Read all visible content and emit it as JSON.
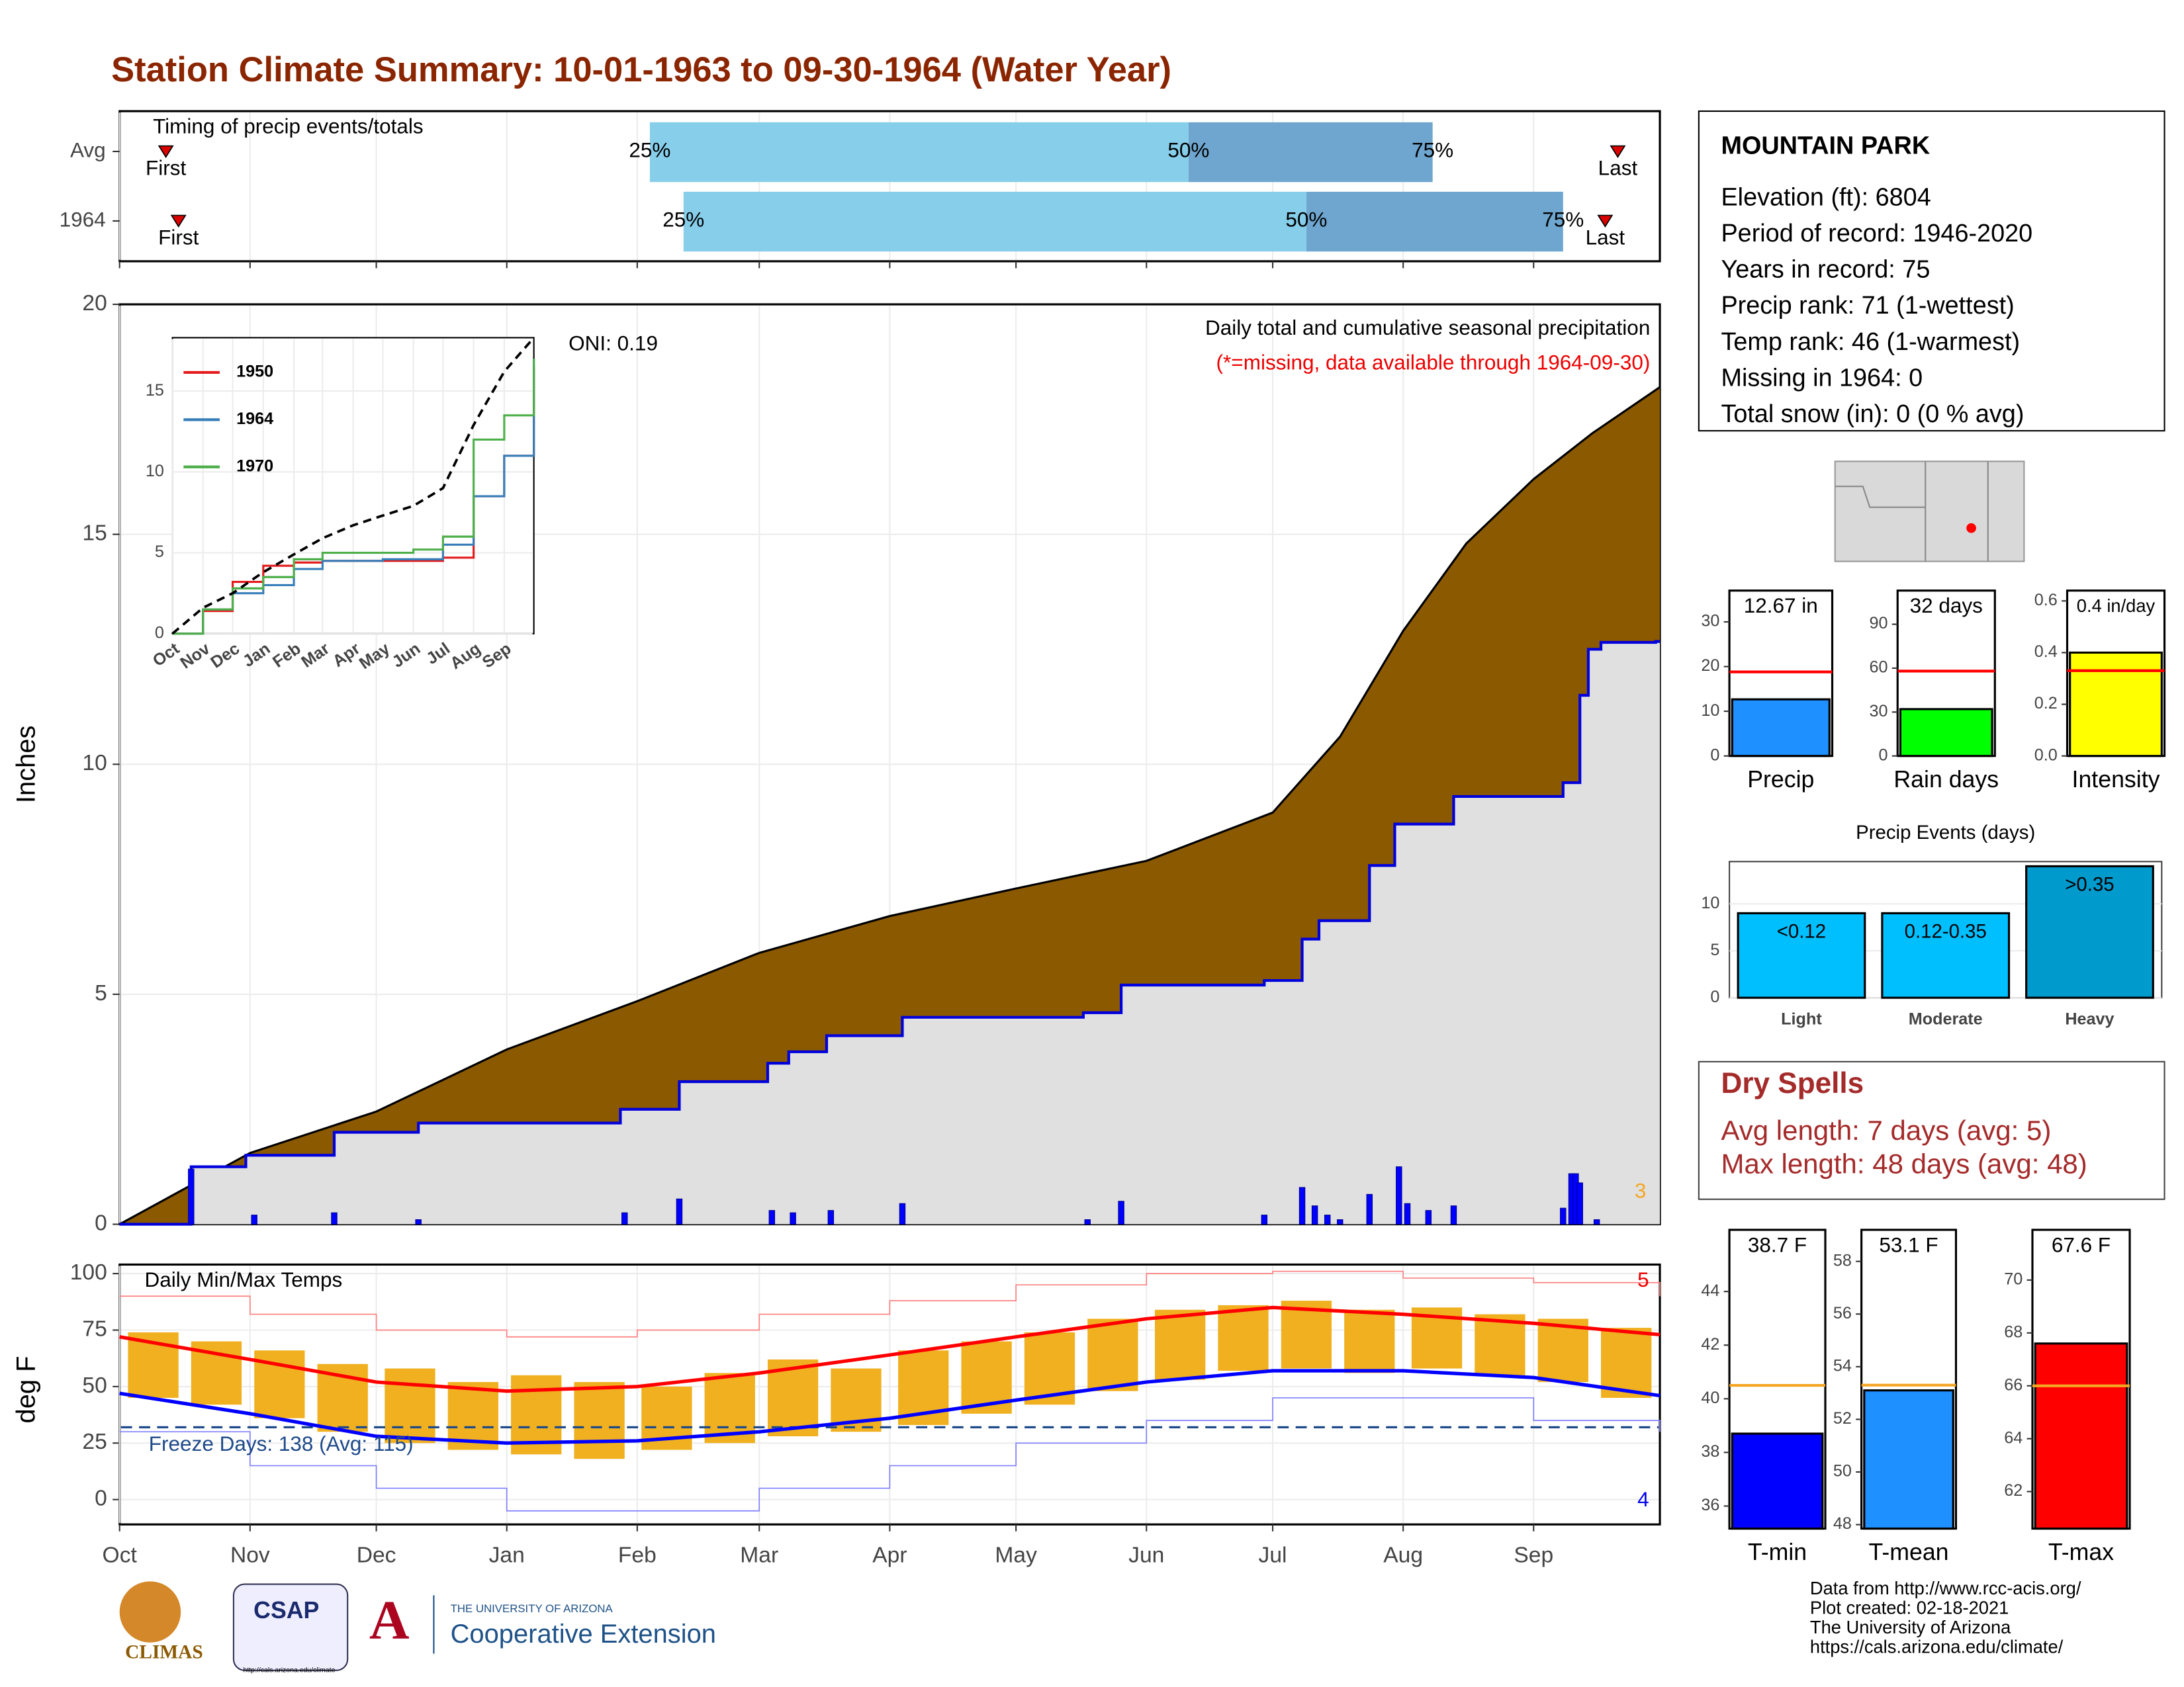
{
  "title": "Station Climate Summary: 10-01-1963 to 09-30-1964 (Water Year)",
  "station": {
    "name": "MOUNTAIN PARK",
    "lines": [
      "Elevation (ft): 6804",
      "Period of record: 1946-2020",
      "Years in record: 75",
      "Precip rank: 71 (1-wettest)",
      "Temp rank: 46 (1-warmest)",
      "Missing in 1964: 0",
      "Total snow (in): 0 (0 % avg)"
    ]
  },
  "dry_spells": {
    "title": "Dry Spells",
    "lines": [
      "Avg length: 7 days (avg: 5)",
      "Max length: 48 days (avg: 48)"
    ]
  },
  "footer": [
    "Data from http://www.rcc-acis.org/",
    "Plot created: 02-18-2021",
    "The University of Arizona",
    "https://cals.arizona.edu/climate/"
  ],
  "logos": {
    "climas": "CLIMAS",
    "csap": "CSAP",
    "csap_url": "http://cals.arizona.edu/climate",
    "ua": "THE UNIVERSITY OF ARIZONA",
    "coop": "Cooperative Extension"
  },
  "chart_data": [
    {
      "type": "timing",
      "title": "Timing of precip events/totals",
      "first_label": "First",
      "last_label": "Last",
      "quantile_labels": [
        "25%",
        "50%",
        "75%"
      ],
      "rows": [
        {
          "name": "Avg",
          "first": 11,
          "q25": 126,
          "q50": 254,
          "q75": 312,
          "last": 356
        },
        {
          "name": "1964",
          "first": 14,
          "q25": 134,
          "q50": 282,
          "q75": 343,
          "last": 353
        }
      ],
      "colors": [
        "#87ceeb",
        "#6ea6cf"
      ]
    },
    {
      "type": "cumulative",
      "title": "Daily total and cumulative seasonal precipitation",
      "subtitle": "(*=missing, data available through 1964-09-30)",
      "annotation": "ONI: 0.19",
      "count_label": "3",
      "ylabel": "Inches",
      "ylim": [
        0,
        20
      ],
      "yticks": [
        0,
        5,
        10,
        15,
        20
      ],
      "grid": true,
      "avg": {
        "color": "#8b5a00",
        "x": [
          0,
          31,
          61,
          92,
          123,
          152,
          183,
          213,
          244,
          274,
          290,
          305,
          320,
          336,
          350,
          366
        ],
        "values": [
          0,
          1.55,
          2.45,
          3.8,
          4.85,
          5.9,
          6.7,
          7.3,
          7.9,
          8.95,
          10.6,
          12.9,
          14.8,
          16.2,
          17.2,
          18.2
        ]
      },
      "current": {
        "color": "#0000dd",
        "fill": "#e0e0e0",
        "x": [
          0,
          17,
          30,
          51,
          71,
          119,
          133,
          154,
          159,
          168,
          186,
          229,
          238,
          272,
          281,
          285,
          297,
          303,
          317,
          343,
          347,
          349,
          352,
          365
        ],
        "values": [
          0,
          1.25,
          1.5,
          2.0,
          2.2,
          2.5,
          3.1,
          3.5,
          3.75,
          4.1,
          4.5,
          4.6,
          5.2,
          5.3,
          6.2,
          6.6,
          7.8,
          8.7,
          9.3,
          9.6,
          11.5,
          12.5,
          12.65,
          12.67
        ]
      },
      "daily": {
        "color": "#0000ff",
        "x": [
          17,
          32,
          51,
          71,
          120,
          133,
          155,
          160,
          169,
          186,
          230,
          238,
          272,
          281,
          284,
          287,
          290,
          297,
          304,
          306,
          311,
          317,
          343,
          345,
          346,
          347,
          351
        ],
        "values": [
          1.2,
          0.2,
          0.25,
          0.1,
          0.25,
          0.55,
          0.3,
          0.25,
          0.3,
          0.45,
          0.1,
          0.5,
          0.2,
          0.8,
          0.4,
          0.2,
          0.1,
          0.65,
          1.25,
          0.45,
          0.3,
          0.4,
          0.35,
          1.1,
          1.1,
          0.9,
          0.1
        ]
      }
    },
    {
      "type": "inset",
      "xlim": [
        0,
        366
      ],
      "ylim": [
        0,
        18.3
      ],
      "yticks": [
        0,
        5,
        10,
        15
      ],
      "x": [
        0,
        31,
        61,
        92,
        123,
        152,
        183,
        213,
        244,
        274,
        305,
        336,
        366
      ],
      "avg": {
        "values": [
          0,
          1.6,
          2.5,
          3.8,
          4.9,
          5.9,
          6.7,
          7.3,
          7.9,
          9,
          12.9,
          16.2,
          18.3
        ]
      },
      "series": [
        {
          "name": "1950",
          "color": "#e41a1c",
          "values": [
            0,
            1.4,
            3.2,
            4.2,
            4.4,
            4.5,
            4.5,
            4.5,
            4.5,
            4.7,
            8.5,
            11,
            16.5
          ]
        },
        {
          "name": "1964",
          "color": "#377eb8",
          "values": [
            0,
            1.5,
            2.5,
            3,
            4,
            4.5,
            4.5,
            4.6,
            4.6,
            5.5,
            8.5,
            11,
            17
          ]
        },
        {
          "name": "1970",
          "color": "#4daf4a",
          "values": [
            0,
            1.5,
            2.8,
            3.5,
            4.6,
            5,
            5,
            5,
            5.2,
            6,
            12,
            13.5,
            17
          ]
        }
      ]
    },
    {
      "type": "temps",
      "title": "Daily Min/Max Temps",
      "annotation": "Freeze Days: 138 (Avg: 115)",
      "high_count": "5",
      "low_count": "4",
      "ylabel": "deg F",
      "xlim": [
        0,
        366
      ],
      "xticks": [
        {
          "value": 0,
          "label": "Oct"
        },
        {
          "value": 31,
          "label": "Nov"
        },
        {
          "value": 61,
          "label": "Dec"
        },
        {
          "value": 92,
          "label": "Jan"
        },
        {
          "value": 123,
          "label": "Feb"
        },
        {
          "value": 152,
          "label": "Mar"
        },
        {
          "value": 183,
          "label": "Apr"
        },
        {
          "value": 213,
          "label": "May"
        },
        {
          "value": 244,
          "label": "Jun"
        },
        {
          "value": 274,
          "label": "Jul"
        },
        {
          "value": 305,
          "label": "Aug"
        },
        {
          "value": 336,
          "label": "Sep"
        }
      ],
      "ylim": [
        -11,
        104
      ],
      "yticks": [
        0,
        25,
        50,
        75,
        100
      ],
      "grid": true,
      "freeze_line": 32,
      "bars": {
        "color": "#f0b020",
        "x": [
          8,
          23,
          38,
          53,
          69,
          84,
          99,
          114,
          130,
          145,
          160,
          175,
          191,
          206,
          221,
          236,
          252,
          267,
          282,
          297,
          313,
          328,
          343,
          358
        ],
        "max": [
          74,
          70,
          66,
          60,
          58,
          52,
          55,
          52,
          50,
          56,
          62,
          58,
          66,
          70,
          74,
          80,
          84,
          86,
          88,
          84,
          85,
          82,
          80,
          76
        ],
        "min": [
          45,
          42,
          36,
          30,
          25,
          22,
          20,
          18,
          22,
          25,
          28,
          30,
          33,
          38,
          42,
          48,
          53,
          57,
          58,
          56,
          58,
          55,
          52,
          45
        ]
      },
      "line_x": [
        0,
        31,
        61,
        92,
        123,
        152,
        183,
        213,
        244,
        274,
        305,
        336,
        366
      ],
      "normal_max": {
        "color": "#ff0000",
        "values": [
          72,
          62,
          52,
          48,
          50,
          56,
          64,
          72,
          80,
          85,
          82,
          78,
          73
        ]
      },
      "normal_min": {
        "color": "#0000ff",
        "values": [
          47,
          38,
          28,
          25,
          26,
          30,
          36,
          44,
          52,
          57,
          57,
          54,
          46
        ]
      },
      "record_max": {
        "color": "#ff8080",
        "values": [
          90,
          82,
          75,
          72,
          75,
          82,
          88,
          95,
          100,
          101,
          98,
          96,
          90
        ]
      },
      "record_min": {
        "color": "#8080ff",
        "values": [
          30,
          15,
          5,
          -5,
          -5,
          5,
          15,
          25,
          35,
          45,
          45,
          35,
          30
        ]
      }
    },
    {
      "type": "bar",
      "category": "Precip",
      "value": 12.67,
      "value_label": "12.67 in",
      "reference": 18.8,
      "ref_color": "#ff0000",
      "color": "#1e90ff",
      "ylim": [
        0,
        37
      ],
      "yticks": [
        0,
        10,
        20,
        30
      ]
    },
    {
      "type": "bar",
      "category": "Rain days",
      "value": 32,
      "value_label": "32 days",
      "reference": 58,
      "ref_color": "#ff0000",
      "color": "#00ff00",
      "ylim": [
        0,
        113
      ],
      "yticks": [
        0,
        30,
        60,
        90
      ]
    },
    {
      "type": "bar",
      "category": "Intensity",
      "value": 0.4,
      "value_label": "0.4 in/day",
      "reference": 0.33,
      "ref_color": "#ff0000",
      "color": "#ffff00",
      "ylim": [
        0,
        0.64
      ],
      "yticks": [
        {
          "value": 0,
          "label": "0.0"
        },
        0.2,
        0.4,
        0.6
      ]
    },
    {
      "type": "events",
      "title": "Precip Events (days)",
      "categories": [
        "Light",
        "Moderate",
        "Heavy"
      ],
      "values": [
        9,
        9,
        14
      ],
      "value_labels": [
        "<0.12",
        "0.12-0.35",
        ">0.35"
      ],
      "colors": [
        "#00bfff",
        "#00bfff",
        "#009acd"
      ],
      "ylim": [
        0,
        14.5
      ],
      "yticks": [
        0,
        5,
        10
      ]
    },
    {
      "type": "bar",
      "category": "T-min",
      "value": 38.7,
      "value_label": "38.7 F",
      "reference": 40.5,
      "ref_color": "#f5a623",
      "color": "#0000ff",
      "ylim": [
        35.16,
        46.3
      ],
      "yticks": [
        36,
        38,
        40,
        42,
        44
      ]
    },
    {
      "type": "bar",
      "category": "T-mean",
      "value": 53.1,
      "value_label": "53.1 F",
      "reference": 53.3,
      "ref_color": "#f5a623",
      "color": "#1e90ff",
      "ylim": [
        47.85,
        59.2
      ],
      "yticks": [
        48,
        50,
        52,
        54,
        56,
        58
      ]
    },
    {
      "type": "bar",
      "category": "T-max",
      "value": 67.6,
      "value_label": "67.6 F",
      "reference": 66.0,
      "ref_color": "#f5a623",
      "color": "#ff0000",
      "ylim": [
        60.6,
        71.9
      ],
      "yticks": [
        62,
        64,
        66,
        68,
        70
      ]
    }
  ]
}
